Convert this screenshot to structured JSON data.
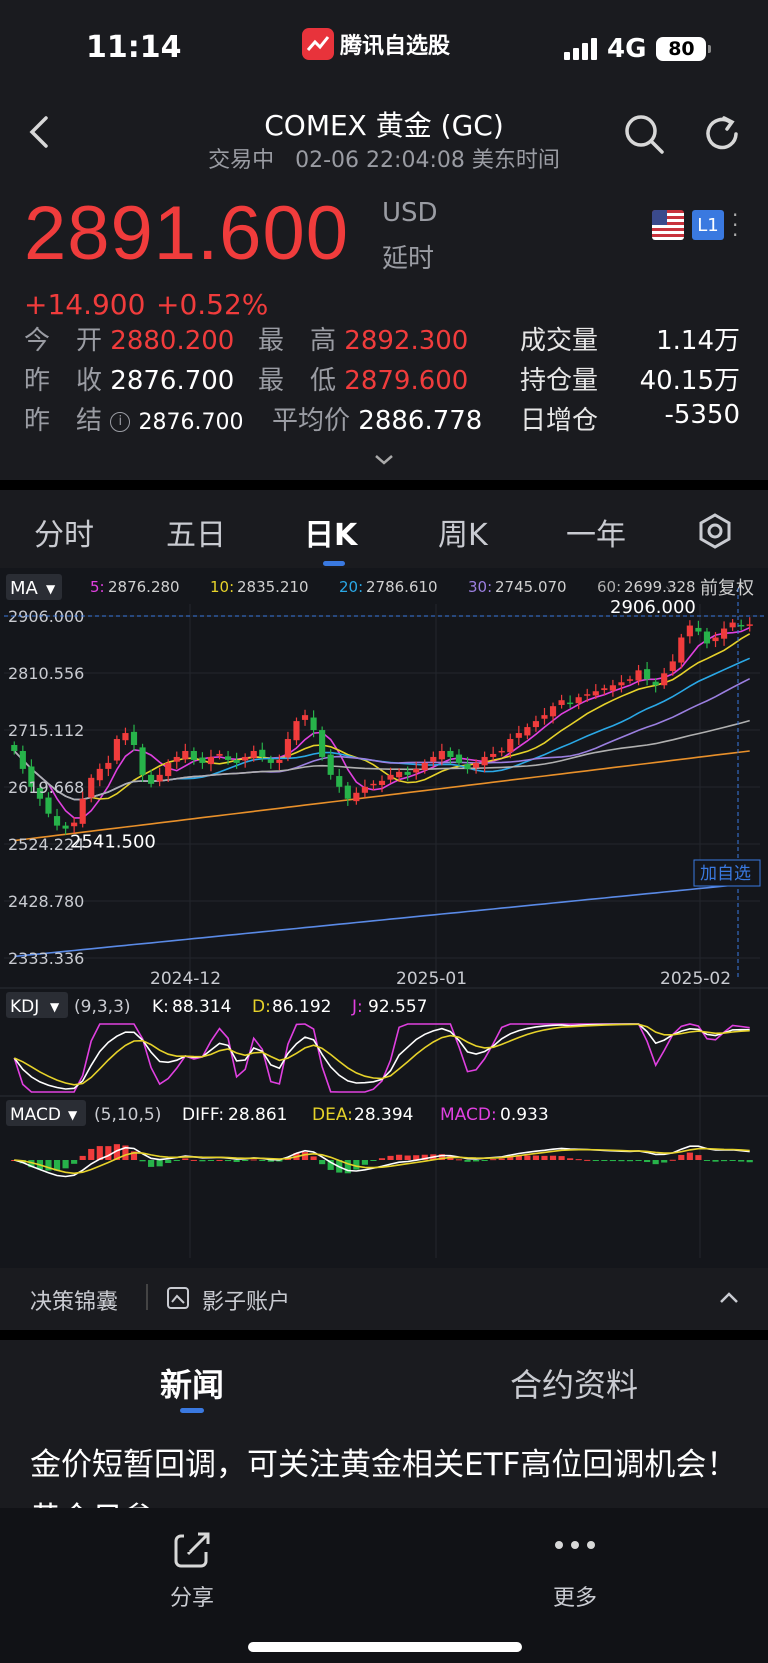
{
  "status_bar": {
    "time": "11:14",
    "app_name": "腾讯自选股",
    "network": "4G",
    "battery": "80"
  },
  "header": {
    "title": "COMEX 黄金 (GC)",
    "status": "交易中",
    "datetime": "02-06 22:04:08 美东时间"
  },
  "quote": {
    "price": "2891.600",
    "currency": "USD",
    "delay": "延时",
    "change": "+14.900",
    "change_pct": "+0.52%",
    "badge": "L1",
    "stats": {
      "open_label": "今　开",
      "open": "2880.200",
      "high_label": "最　高",
      "high": "2892.300",
      "volume_label": "成交量",
      "volume": "1.14万",
      "prev_close_label": "昨　收",
      "prev_close": "2876.700",
      "low_label": "最　低",
      "low": "2879.600",
      "open_interest_label": "持仓量",
      "open_interest": "40.15万",
      "settle_label": "昨　结",
      "settle": "2876.700",
      "avg_label": "平均价",
      "avg": "2886.778",
      "oi_change_label": "日增仓",
      "oi_change": "-5350"
    }
  },
  "tabs": [
    {
      "label": "分时"
    },
    {
      "label": "五日"
    },
    {
      "label": "日K"
    },
    {
      "label": "周K"
    },
    {
      "label": "一年"
    }
  ],
  "active_tab": "日K",
  "chart": {
    "ma_selector": "MA",
    "adjust": "前复权",
    "ma": [
      {
        "label": "5:",
        "value": "2876.280",
        "color": "#e040e0"
      },
      {
        "label": "10:",
        "value": "2835.210",
        "color": "#e6d22a"
      },
      {
        "label": "20:",
        "value": "2786.610",
        "color": "#2aa8e6"
      },
      {
        "label": "30:",
        "value": "2745.070",
        "color": "#9b7fe0"
      },
      {
        "label": "60:",
        "value": "2699.328",
        "color": "#b0b0b0"
      }
    ],
    "add_watch": "加自选",
    "kdj": {
      "selector": "KDJ",
      "params": "(9,3,3)",
      "k_label": "K:",
      "k": "88.314",
      "d_label": "D:",
      "d": "86.192",
      "j_label": "J:",
      "j": "92.557"
    },
    "macd": {
      "selector": "MACD",
      "params": "(5,10,5)",
      "diff_label": "DIFF:",
      "diff": "28.861",
      "dea_label": "DEA:",
      "dea": "28.394",
      "macd_label": "MACD:",
      "macd": "0.933"
    }
  },
  "chart_data": {
    "type": "candlestick",
    "y_ticks": [
      "2906.000",
      "2810.556",
      "2715.112",
      "2619.668",
      "2524.224",
      "2428.780",
      "2333.336"
    ],
    "ylim": [
      2333.336,
      2906.0
    ],
    "x_ticks": [
      "2024-12",
      "2025-01",
      "2025-02"
    ],
    "last_high_label": "2906.000",
    "low_label": "2541.500",
    "closes": [
      2680,
      2650,
      2620,
      2600,
      2575,
      2555,
      2550,
      2560,
      2600,
      2635,
      2650,
      2660,
      2700,
      2710,
      2690,
      2640,
      2625,
      2640,
      2660,
      2670,
      2680,
      2665,
      2660,
      2670,
      2675,
      2665,
      2660,
      2670,
      2680,
      2670,
      2660,
      2665,
      2700,
      2730,
      2740,
      2715,
      2670,
      2640,
      2620,
      2600,
      2610,
      2620,
      2625,
      2630,
      2640,
      2645,
      2640,
      2650,
      2660,
      2670,
      2680,
      2670,
      2660,
      2650,
      2660,
      2670,
      2675,
      2680,
      2700,
      2710,
      2720,
      2730,
      2740,
      2755,
      2765,
      2760,
      2770,
      2775,
      2780,
      2785,
      2790,
      2795,
      2800,
      2815,
      2800,
      2790,
      2810,
      2830,
      2870,
      2890,
      2880,
      2860,
      2870,
      2885,
      2895,
      2890,
      2892
    ]
  },
  "strip": {
    "decision": "决策锦囊",
    "shadow": "影子账户"
  },
  "news": {
    "tab_news": "新闻",
    "tab_contract": "合约资料",
    "headline": "金价短暂回调，可关注黄金相关ETF高位回调机会！黄金日参"
  },
  "bottom": {
    "share": "分享",
    "more": "更多"
  }
}
